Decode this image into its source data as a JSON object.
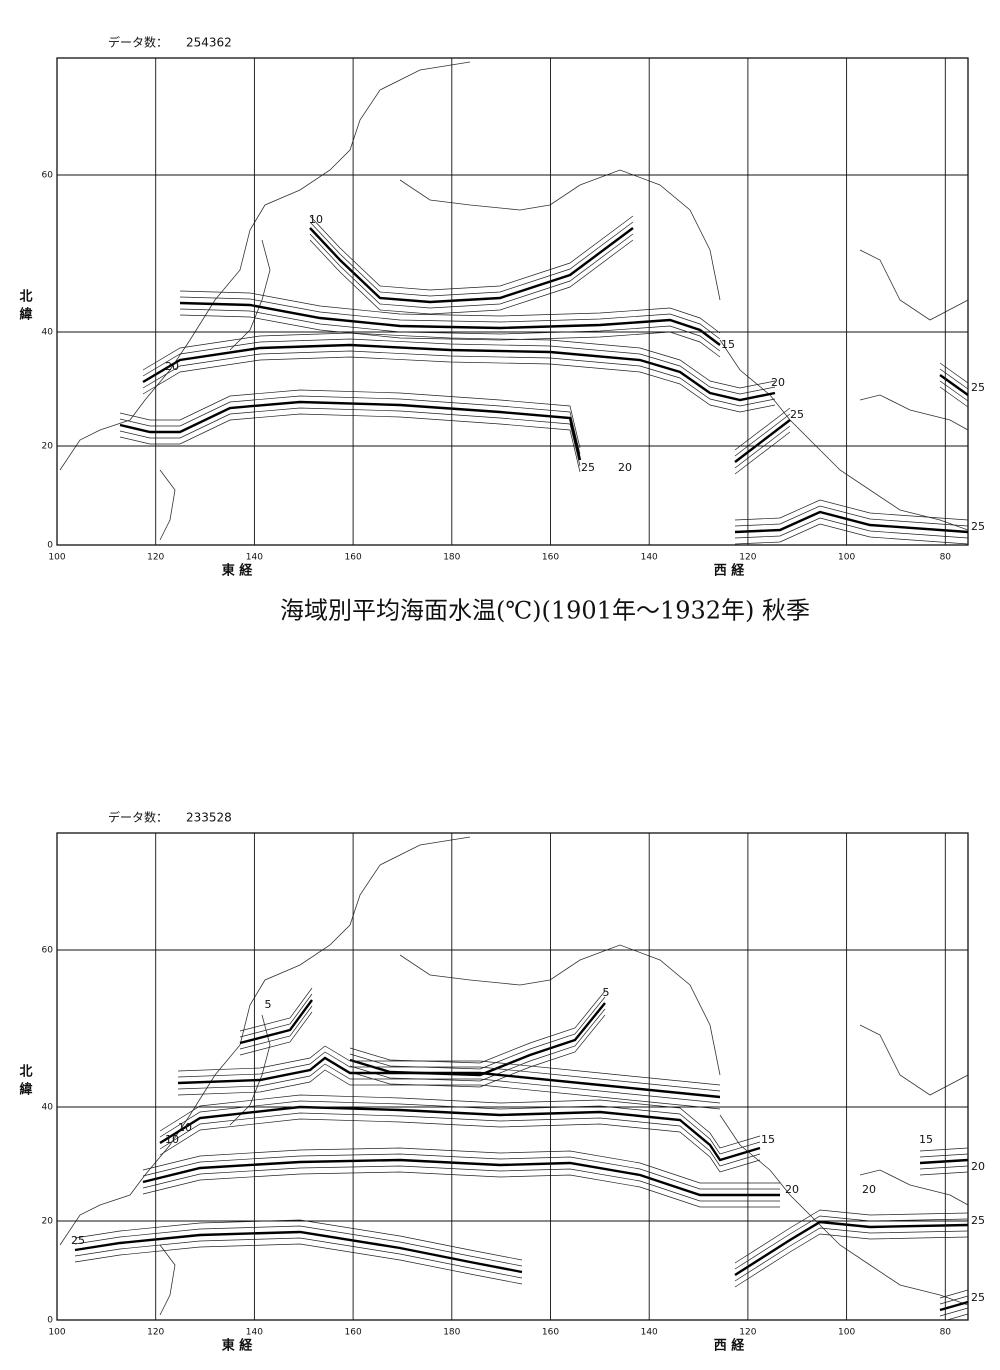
{
  "caption": "海域別平均海面水温(℃)(1901年～1932年) 秋季",
  "maps": [
    {
      "data_count_label": "データ数：",
      "data_count": "254362",
      "lat_axis": [
        "北",
        "緯"
      ],
      "lat_ticks": [
        "60",
        "40",
        "20",
        "0"
      ],
      "lon_ticks": [
        "100",
        "120",
        "140",
        "160",
        "180",
        "160",
        "140",
        "120",
        "100",
        "80"
      ],
      "east_label": "東 経",
      "west_label": "西 経",
      "contour_labels": [
        "10",
        "15",
        "20",
        "20",
        "25",
        "25",
        "20",
        "25",
        "25"
      ]
    },
    {
      "data_count_label": "データ数：",
      "data_count": "233528",
      "lat_axis": [
        "北",
        "緯"
      ],
      "lat_ticks": [
        "60",
        "40",
        "20",
        "0"
      ],
      "lon_ticks": [
        "100",
        "120",
        "140",
        "160",
        "180",
        "160",
        "140",
        "120",
        "100",
        "80"
      ],
      "east_label": "東 経",
      "west_label": "西 経",
      "contour_labels": [
        "5",
        "5",
        "10",
        "10",
        "15",
        "15",
        "20",
        "20",
        "20",
        "25",
        "25",
        "25"
      ]
    }
  ]
}
